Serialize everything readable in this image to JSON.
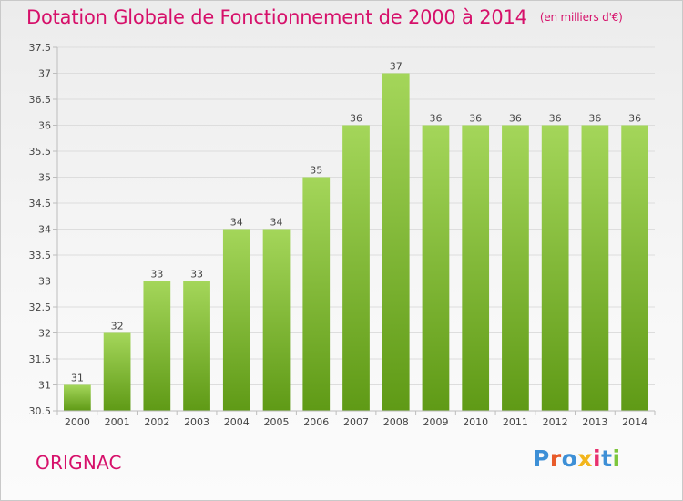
{
  "header": {
    "title": "Dotation Globale de Fonctionnement de 2000 à 2014",
    "unit": "(en milliers d'€)"
  },
  "footer": {
    "commune": "ORIGNAC",
    "logo_text": "Proxiti",
    "logo_colors": [
      "#3d8fd6",
      "#e85b2a",
      "#3d8fd6",
      "#f2b51c",
      "#e8306e",
      "#3d8fd6",
      "#7cc63c"
    ]
  },
  "colors": {
    "bar_top": "#a4d65a",
    "bar_bottom": "#5f9a16",
    "axis": "#bdbdbd",
    "grid": "#dddddd",
    "text": "#444444",
    "title": "#d6106a"
  },
  "chart_data": {
    "type": "bar",
    "title": "Dotation Globale de Fonctionnement de 2000 à 2014",
    "subtitle": "(en milliers d'€)",
    "xlabel": "",
    "ylabel": "",
    "categories": [
      "2000",
      "2001",
      "2002",
      "2003",
      "2004",
      "2005",
      "2006",
      "2007",
      "2008",
      "2009",
      "2010",
      "2011",
      "2012",
      "2013",
      "2014"
    ],
    "values": [
      31,
      32,
      33,
      33,
      34,
      34,
      35,
      36,
      37,
      36,
      36,
      36,
      36,
      36,
      36
    ],
    "data_labels": [
      "31",
      "32",
      "33",
      "33",
      "34",
      "34",
      "35",
      "36",
      "37",
      "36",
      "36",
      "36",
      "36",
      "36",
      "36"
    ],
    "ylim": [
      30.5,
      37.5
    ],
    "yticks": [
      30.5,
      31,
      31.5,
      32,
      32.5,
      33,
      33.5,
      34,
      34.5,
      35,
      35.5,
      36,
      36.5,
      37,
      37.5
    ],
    "ytick_labels": [
      "30.5",
      "31",
      "31.5",
      "32",
      "32.5",
      "33",
      "33.5",
      "34",
      "34.5",
      "35",
      "35.5",
      "36",
      "36.5",
      "37",
      "37.5"
    ],
    "grid": true,
    "legend": "none"
  }
}
